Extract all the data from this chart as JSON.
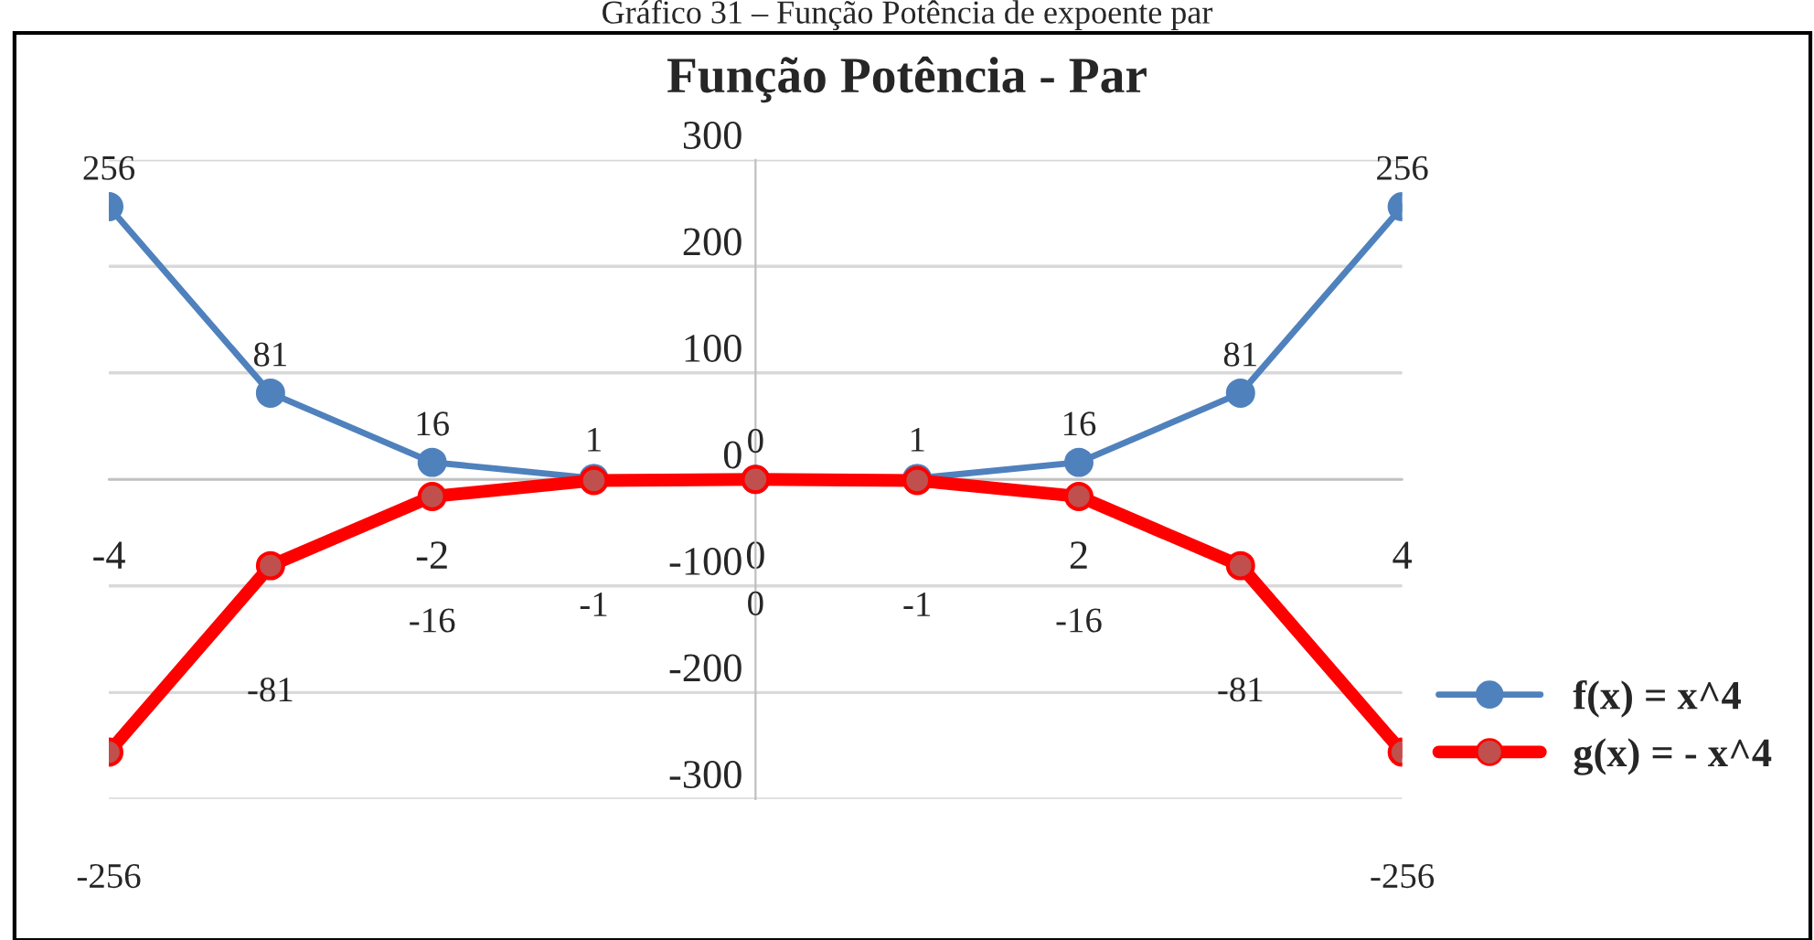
{
  "chart_data": {
    "type": "line",
    "title": "Função Potência - Par",
    "annotations": [
      "Gráfico 31 – Função Potência de expoente par"
    ],
    "x": [
      -4,
      -3,
      -2,
      -1,
      0,
      1,
      2,
      3,
      4
    ],
    "series": [
      {
        "name": "f(x) = x^4",
        "color": "#4f81bd",
        "values": [
          256,
          81,
          16,
          1,
          0,
          1,
          16,
          81,
          256
        ]
      },
      {
        "name": "g(x) = - x^4",
        "color": "#ff0000",
        "values": [
          -256,
          -81,
          -16,
          -1,
          0,
          -1,
          -16,
          -81,
          -256
        ]
      }
    ],
    "xlim": [
      -4,
      4
    ],
    "xticks": [
      -4,
      -2,
      0,
      2,
      4
    ],
    "ylim": [
      -300,
      300
    ],
    "yticks": [
      -300,
      -200,
      -100,
      0,
      100,
      200,
      300
    ],
    "grid": "y",
    "legend": "right",
    "marker": "circle",
    "line_style": "solid",
    "data_labels": true
  }
}
